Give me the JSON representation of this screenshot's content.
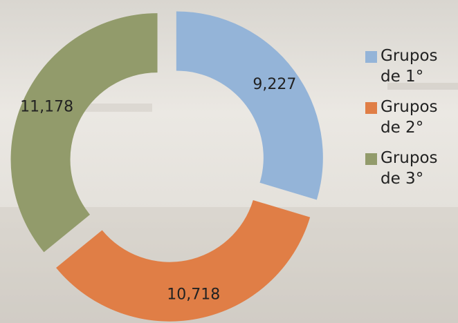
{
  "chart_data": {
    "type": "donut",
    "categories": [
      "Grupos de 1°",
      "Grupos de 2°",
      "Grupos de 3°"
    ],
    "values": [
      9227,
      10718,
      11178
    ],
    "value_labels": [
      "9,227",
      "10,718",
      "11,178"
    ],
    "colors": [
      "#94b4d8",
      "#e07e46",
      "#929b6b"
    ],
    "legend": "right"
  }
}
